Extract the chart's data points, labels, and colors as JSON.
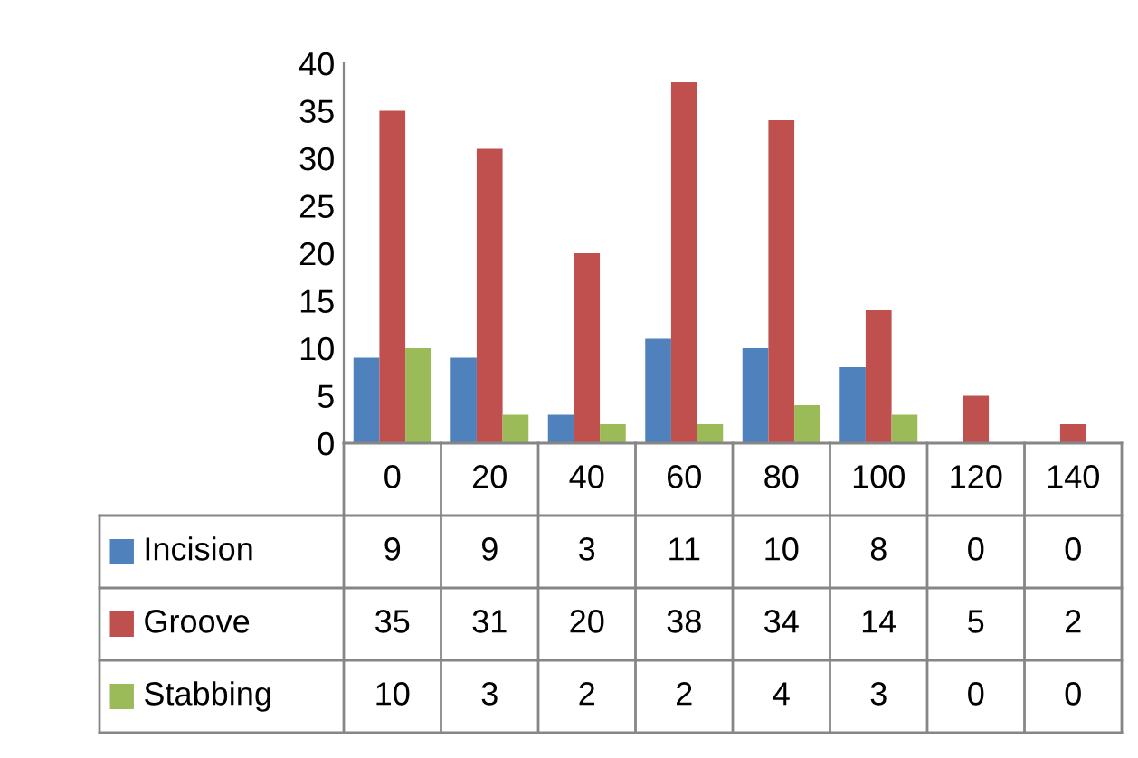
{
  "chart_data": {
    "type": "bar",
    "categories": [
      "0",
      "20",
      "40",
      "60",
      "80",
      "100",
      "120",
      "140"
    ],
    "series": [
      {
        "name": "Incision",
        "color": "#4f81bd",
        "values": [
          9,
          9,
          3,
          11,
          10,
          8,
          0,
          0
        ]
      },
      {
        "name": "Groove",
        "color": "#c0504d",
        "values": [
          35,
          31,
          20,
          38,
          34,
          14,
          5,
          2
        ]
      },
      {
        "name": "Stabbing",
        "color": "#9bbb59",
        "values": [
          10,
          3,
          2,
          2,
          4,
          3,
          0,
          0
        ]
      }
    ],
    "ylim": [
      0,
      40
    ],
    "yticks": [
      0,
      5,
      10,
      15,
      20,
      25,
      30,
      35,
      40
    ],
    "grid": false,
    "legend": "left",
    "data_labels": true
  }
}
